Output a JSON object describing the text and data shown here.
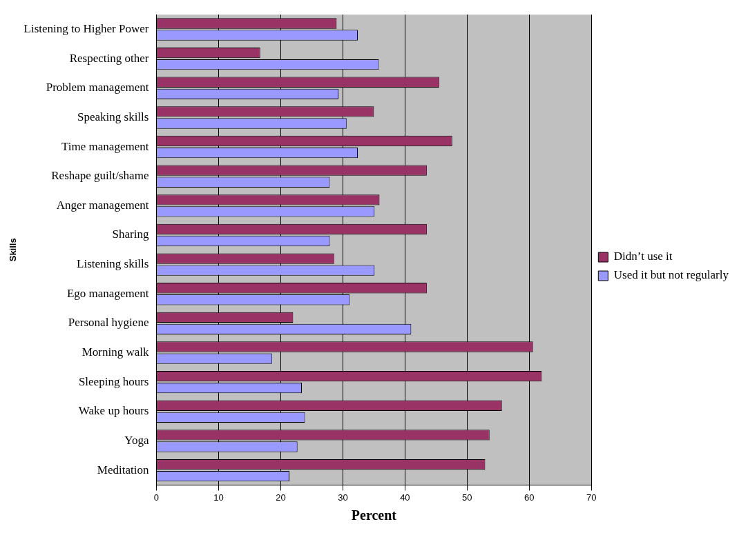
{
  "chart_data": {
    "type": "bar",
    "orientation": "horizontal",
    "xlabel": "Percent",
    "ylabel": "Skills",
    "categories": [
      "Listening to Higher Power",
      "Respecting other",
      "Problem management",
      "Speaking skills",
      "Time management",
      "Reshape guilt/shame",
      "Anger management",
      "Sharing",
      "Listening skills",
      "Ego management",
      "Personal hygiene",
      "Morning walk",
      "Sleeping hours",
      "Wake up hours",
      "Yoga",
      "Meditation"
    ],
    "series": [
      {
        "name": "Didn’t use it",
        "color": "#993366",
        "values": [
          29,
          16.7,
          45.5,
          35,
          47.6,
          43.5,
          35.9,
          43.5,
          28.6,
          43.5,
          22,
          60.6,
          62,
          55.6,
          53.6,
          52.9
        ]
      },
      {
        "name": "Used it but not regularly",
        "color": "#9999ff",
        "values": [
          32.4,
          35.8,
          29.3,
          30.6,
          32.4,
          27.9,
          35.1,
          27.9,
          35.1,
          31.1,
          41,
          18.6,
          23.4,
          23.9,
          22.7,
          21.4
        ]
      }
    ],
    "xlim": [
      0,
      70
    ],
    "xticks": [
      0,
      10,
      20,
      30,
      40,
      50,
      60,
      70
    ],
    "grid": "x",
    "legend": "right"
  }
}
